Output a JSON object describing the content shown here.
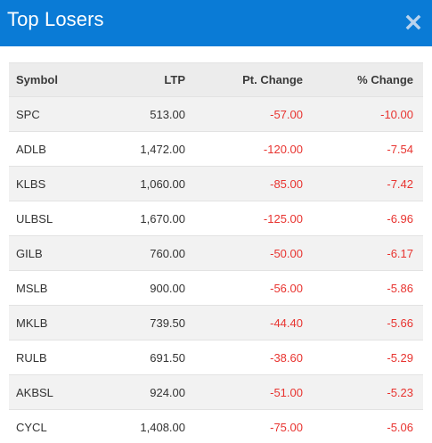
{
  "modal": {
    "title": "Top Losers",
    "close_label": "×"
  },
  "colors": {
    "header_bg": "#0a7bd6",
    "negative": "#e8332f"
  },
  "icons": {
    "close": "close-icon"
  },
  "table": {
    "columns": [
      "Symbol",
      "LTP",
      "Pt. Change",
      "% Change"
    ],
    "rows": [
      {
        "symbol": "SPC",
        "ltp": "513.00",
        "pt_change": "-57.00",
        "pct_change": "-10.00"
      },
      {
        "symbol": "ADLB",
        "ltp": "1,472.00",
        "pt_change": "-120.00",
        "pct_change": "-7.54"
      },
      {
        "symbol": "KLBS",
        "ltp": "1,060.00",
        "pt_change": "-85.00",
        "pct_change": "-7.42"
      },
      {
        "symbol": "ULBSL",
        "ltp": "1,670.00",
        "pt_change": "-125.00",
        "pct_change": "-6.96"
      },
      {
        "symbol": "GILB",
        "ltp": "760.00",
        "pt_change": "-50.00",
        "pct_change": "-6.17"
      },
      {
        "symbol": "MSLB",
        "ltp": "900.00",
        "pt_change": "-56.00",
        "pct_change": "-5.86"
      },
      {
        "symbol": "MKLB",
        "ltp": "739.50",
        "pt_change": "-44.40",
        "pct_change": "-5.66"
      },
      {
        "symbol": "RULB",
        "ltp": "691.50",
        "pt_change": "-38.60",
        "pct_change": "-5.29"
      },
      {
        "symbol": "AKBSL",
        "ltp": "924.00",
        "pt_change": "-51.00",
        "pct_change": "-5.23"
      },
      {
        "symbol": "CYCL",
        "ltp": "1,408.00",
        "pt_change": "-75.00",
        "pct_change": "-5.06"
      }
    ]
  }
}
